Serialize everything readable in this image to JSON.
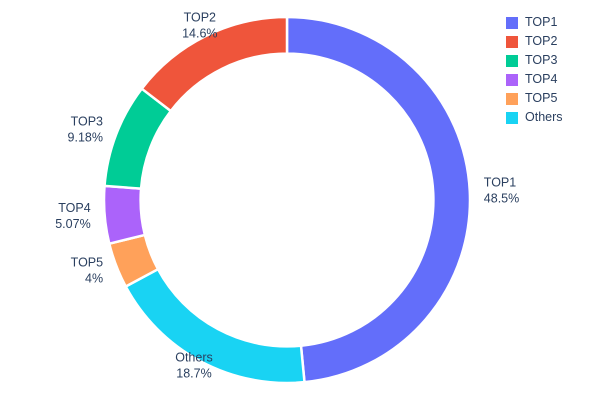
{
  "chart_data": {
    "type": "pie",
    "subtype": "donut",
    "hole": 0.8,
    "title": "",
    "labels": [
      "TOP1",
      "TOP2",
      "TOP3",
      "TOP4",
      "TOP5",
      "Others"
    ],
    "values": [
      48.5,
      14.6,
      9.18,
      5.07,
      4,
      18.7
    ],
    "percent_labels": [
      "48.5%",
      "14.6%",
      "9.18%",
      "5.07%",
      "4%",
      "18.7%"
    ],
    "colors": [
      "#636efa",
      "#ef553b",
      "#00cc96",
      "#ab63fa",
      "#ffa15a",
      "#19d3f3"
    ],
    "draw_order": [
      0,
      5,
      4,
      3,
      2,
      1
    ],
    "direction": "clockwise",
    "start_angle_deg": 0,
    "label_position": "outside",
    "text_color": "#2a3f5f",
    "background": "#ffffff",
    "legend": {
      "position": "top-right",
      "items": [
        "TOP1",
        "TOP2",
        "TOP3",
        "TOP4",
        "TOP5",
        "Others"
      ]
    }
  }
}
